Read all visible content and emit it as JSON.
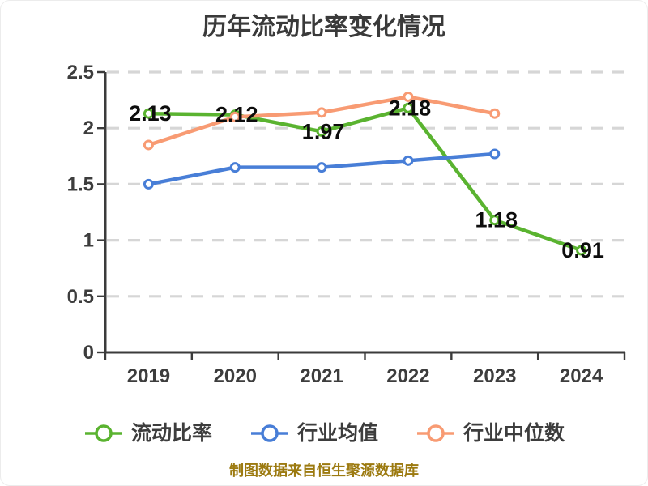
{
  "title": {
    "text": "历年流动比率变化情况"
  },
  "chart_data": {
    "type": "line",
    "title": "历年流动比率变化情况",
    "categories": [
      "2019",
      "2020",
      "2021",
      "2022",
      "2023",
      "2024"
    ],
    "series": [
      {
        "name": "流动比率",
        "color": "#5ab330",
        "values": [
          2.13,
          2.12,
          1.97,
          2.18,
          1.18,
          0.91
        ],
        "point_labels": [
          "2.13",
          "2.12",
          "1.97",
          "2.18",
          "1.18",
          "0.91"
        ]
      },
      {
        "name": "行业均值",
        "color": "#487ed7",
        "values": [
          1.5,
          1.65,
          1.65,
          1.71,
          1.77,
          null
        ],
        "point_labels": []
      },
      {
        "name": "行业中位数",
        "color": "#f89b73",
        "values": [
          1.85,
          2.1,
          2.14,
          2.28,
          2.13,
          null
        ],
        "point_labels": []
      }
    ],
    "xlabel": "",
    "ylabel": "",
    "ylim": [
      0,
      2.5
    ],
    "yticks": [
      "0",
      "0.5",
      "1",
      "1.5",
      "2",
      "2.5"
    ],
    "grid": "horizontal-dashed",
    "legend_position": "bottom",
    "colors": {
      "axis": "#3b3b3b",
      "grid": "#d6d6d6",
      "tick_label": "#3d3d3d",
      "data_label": "#0d0d0d",
      "marker_fill": "#ffffff",
      "title": "#3a3a3a"
    }
  },
  "footer": {
    "note": "制图数据来自恒生聚源数据库",
    "color": "#9c7a10"
  }
}
